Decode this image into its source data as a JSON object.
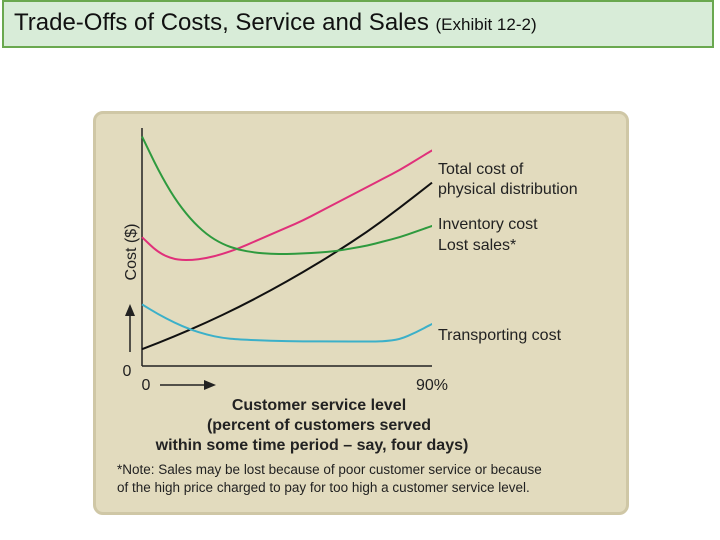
{
  "header": {
    "title": "Trade-Offs of Costs, Service and Sales",
    "subtitle": "(Exhibit 12-2)"
  },
  "chart_data": {
    "type": "line",
    "ylabel": "Cost ($)",
    "y_tick": "0",
    "x_ticks": [
      "0",
      "90%"
    ],
    "xlabel_lines": [
      "Customer service level",
      "(percent of customers served",
      "within some time period – say, four days)"
    ],
    "series_labels": {
      "total": [
        "Total cost of",
        "physical distribution"
      ],
      "inventory": [
        "Inventory cost"
      ],
      "lost": [
        "Lost sales*"
      ],
      "transport": [
        "Transporting cost"
      ]
    },
    "series": [
      {
        "key": "total",
        "color": "#e0307a",
        "x": [
          0,
          5,
          10,
          15,
          20,
          25,
          30,
          35,
          40,
          45,
          50,
          55,
          60,
          65,
          70,
          75,
          80,
          85,
          90
        ],
        "y": [
          4.6,
          4.05,
          3.8,
          3.78,
          3.85,
          4.0,
          4.2,
          4.45,
          4.7,
          4.95,
          5.2,
          5.5,
          5.8,
          6.1,
          6.4,
          6.7,
          7.0,
          7.35,
          7.7
        ]
      },
      {
        "key": "inventory",
        "color": "#111111",
        "x": [
          0,
          10,
          20,
          30,
          40,
          50,
          60,
          70,
          80,
          90
        ],
        "y": [
          0.6,
          1.05,
          1.55,
          2.1,
          2.7,
          3.35,
          4.05,
          4.8,
          5.65,
          6.55
        ]
      },
      {
        "key": "lost",
        "color": "#2e9a3e",
        "x": [
          0,
          5,
          10,
          15,
          20,
          25,
          30,
          35,
          40,
          45,
          50,
          55,
          60,
          65,
          70,
          75,
          80,
          85,
          90
        ],
        "y": [
          8.2,
          7.0,
          6.0,
          5.25,
          4.7,
          4.35,
          4.15,
          4.05,
          4.0,
          4.0,
          4.02,
          4.05,
          4.1,
          4.2,
          4.3,
          4.45,
          4.6,
          4.8,
          5.0
        ]
      },
      {
        "key": "transport",
        "color": "#3bb0c9",
        "x": [
          0,
          5,
          10,
          15,
          20,
          25,
          30,
          40,
          50,
          60,
          70,
          75,
          80,
          85,
          90
        ],
        "y": [
          2.2,
          1.85,
          1.55,
          1.3,
          1.12,
          1.0,
          0.95,
          0.9,
          0.88,
          0.88,
          0.87,
          0.88,
          0.95,
          1.2,
          1.5
        ]
      }
    ],
    "xlim": [
      0,
      90
    ],
    "ylim": [
      0,
      8.5
    ],
    "grid": false
  },
  "note": {
    "lines": [
      "*Note: Sales may be lost because of poor customer service or because",
      "of the high price charged to pay for too high a customer service level."
    ]
  }
}
